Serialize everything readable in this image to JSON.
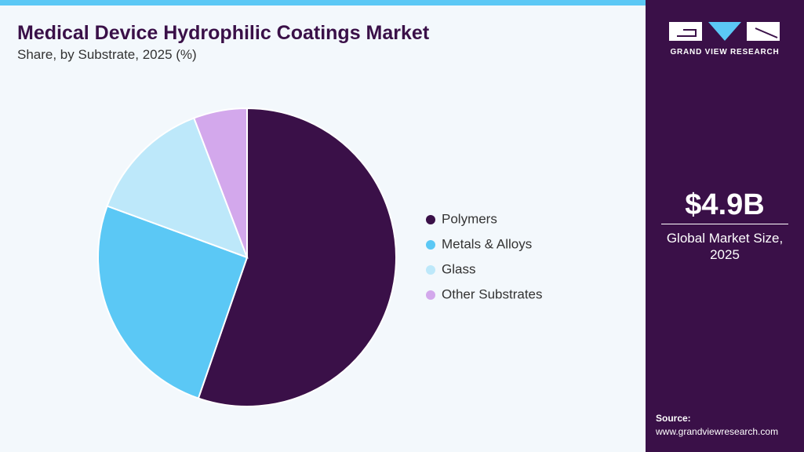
{
  "chart_data": {
    "type": "pie",
    "title": "Medical Device Hydrophilic Coatings Market",
    "subtitle": "Share, by Substrate, 2025 (%)",
    "categories": [
      "Polymers",
      "Metals & Alloys",
      "Glass",
      "Other Substrates"
    ],
    "values": [
      55.3,
      25.3,
      13.6,
      5.8
    ],
    "colors": [
      "#3a1048",
      "#5bc8f5",
      "#bde8fa",
      "#d3a8ec"
    ]
  },
  "sidebar": {
    "brand": "GRAND VIEW RESEARCH",
    "market_size": "$4.9B",
    "market_size_label": "Global Market Size, 2025",
    "source_label": "Source:",
    "source_url": "www.grandviewresearch.com"
  }
}
